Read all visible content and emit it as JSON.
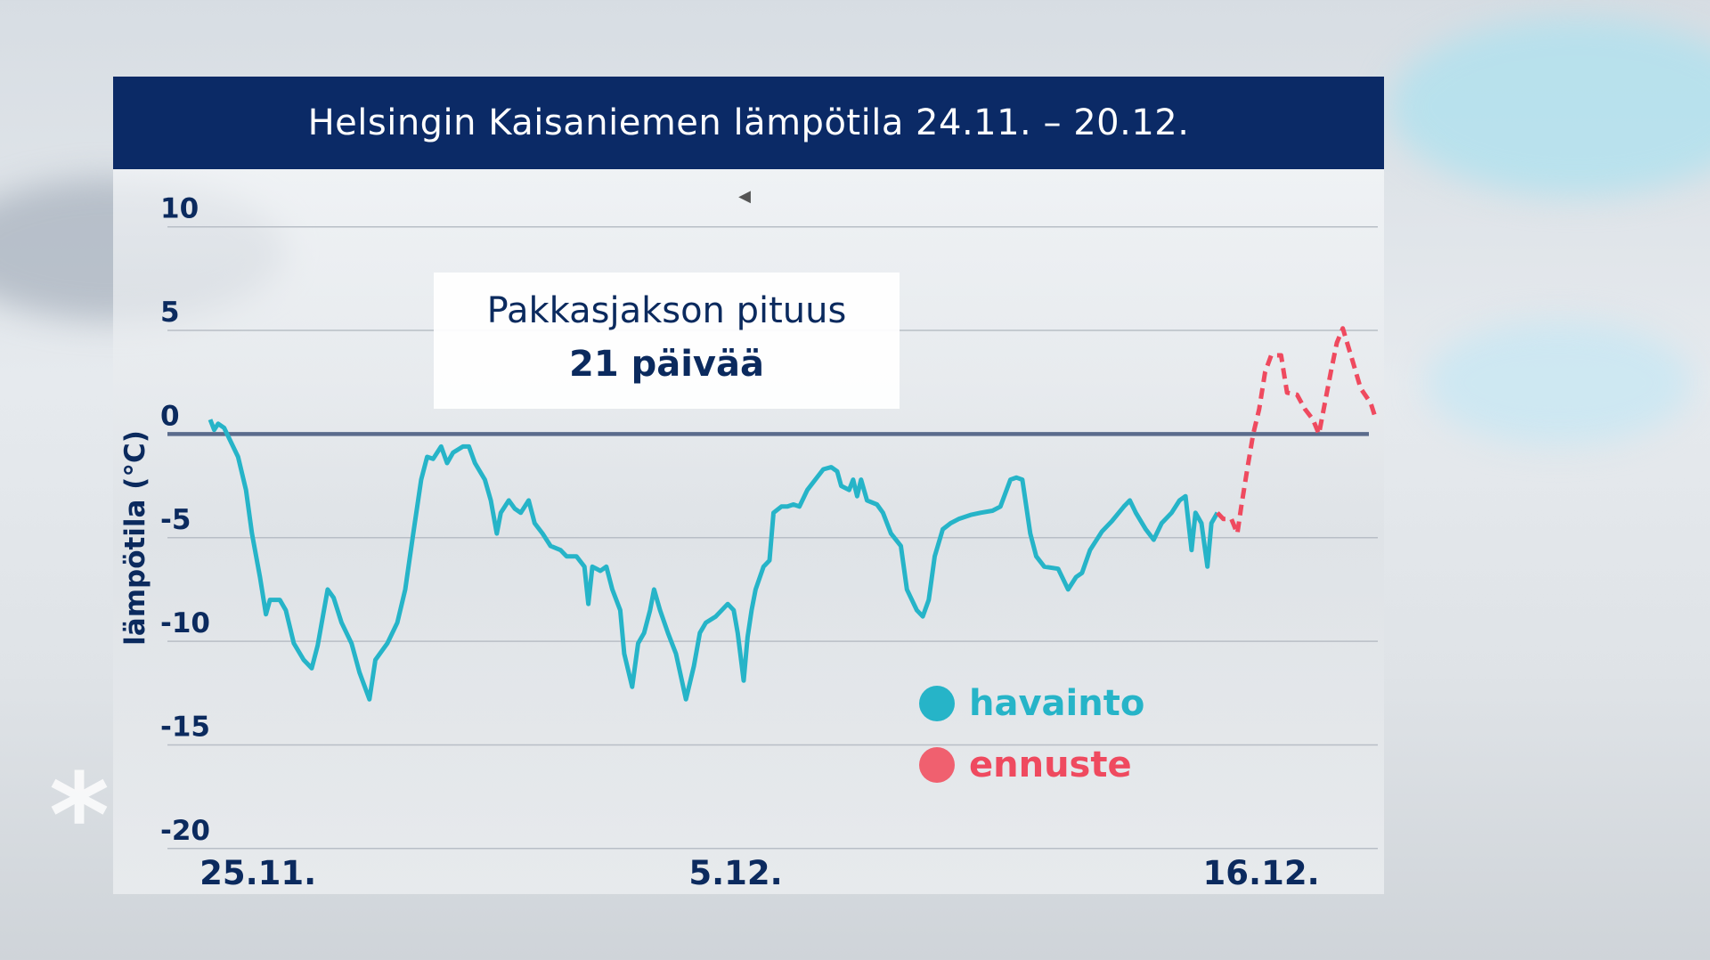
{
  "header": {
    "title": "Helsingin Kaisaniemen lämpötila 24.11. – 20.12."
  },
  "annotation": {
    "line1": "Pakkasjakson pituus",
    "line2": "21 päivää"
  },
  "colors": {
    "header_bg": "#0b2a66",
    "observation": "#26b4c8",
    "forecast": "#ef4a5f",
    "zero_line": "#5a6b8c",
    "text": "#0b2a5e"
  },
  "icons": {
    "pointer": "triangle-left-icon",
    "decor": "snowflake-icon"
  },
  "chart_data": {
    "type": "line",
    "title": "Helsingin Kaisaniemen lämpötila 24.11. – 20.12.",
    "ylabel": "lämpötila (°C)",
    "xlabel": "",
    "ylim": [
      -20,
      10
    ],
    "yticks": [
      10,
      5,
      0,
      -5,
      -10,
      -15,
      -20
    ],
    "xticks": [
      {
        "label": "25.11.",
        "at": "25.11. 00:00"
      },
      {
        "label": "5.12.",
        "at": "5.12. 00:00"
      },
      {
        "label": "16.12.",
        "at": "16.12. 00:00"
      }
    ],
    "xlim": [
      "24.11. 00:00",
      "18.12. 12:00"
    ],
    "grid": true,
    "reference_line": 0,
    "legend": {
      "placement": "bottom-center",
      "entries": [
        "havainto",
        "ennuste"
      ]
    },
    "series": [
      {
        "name": "havainto",
        "style": "solid",
        "points": [
          [
            "24.11. 00:00",
            0.7
          ],
          [
            "24.11. 02:00",
            0.2
          ],
          [
            "24.11. 04:00",
            0.5
          ],
          [
            "24.11. 07:00",
            0.3
          ],
          [
            "24.11. 09:00",
            -0.1
          ],
          [
            "24.11. 14:00",
            -1.1
          ],
          [
            "24.11. 18:00",
            -2.7
          ],
          [
            "24.11. 21:00",
            -4.8
          ],
          [
            "25.11. 01:00",
            -6.9
          ],
          [
            "25.11. 04:00",
            -8.7
          ],
          [
            "25.11. 06:00",
            -8.0
          ],
          [
            "25.11. 11:00",
            -8.0
          ],
          [
            "25.11. 14:00",
            -8.5
          ],
          [
            "25.11. 18:00",
            -10.1
          ],
          [
            "25.11. 23:00",
            -10.9
          ],
          [
            "26.11. 03:00",
            -11.3
          ],
          [
            "26.11. 06:00",
            -10.2
          ],
          [
            "26.11. 11:00",
            -7.5
          ],
          [
            "26.11. 14:00",
            -7.9
          ],
          [
            "26.11. 18:00",
            -9.1
          ],
          [
            "26.11. 23:00",
            -10.1
          ],
          [
            "27.11. 03:00",
            -11.5
          ],
          [
            "27.11. 08:00",
            -12.8
          ],
          [
            "27.11. 11:00",
            -10.9
          ],
          [
            "27.11. 14:00",
            -10.5
          ],
          [
            "27.11. 17:00",
            -10.1
          ],
          [
            "27.11. 22:00",
            -9.1
          ],
          [
            "28.11. 02:00",
            -7.5
          ],
          [
            "28.11. 06:00",
            -4.8
          ],
          [
            "28.11. 10:00",
            -2.2
          ],
          [
            "28.11. 13:00",
            -1.1
          ],
          [
            "28.11. 16:00",
            -1.2
          ],
          [
            "28.11. 20:00",
            -0.6
          ],
          [
            "28.11. 23:00",
            -1.4
          ],
          [
            "29.11. 02:00",
            -0.9
          ],
          [
            "29.11. 07:00",
            -0.6
          ],
          [
            "29.11. 10:00",
            -0.6
          ],
          [
            "29.11. 13:00",
            -1.4
          ],
          [
            "29.11. 18:00",
            -2.2
          ],
          [
            "29.11. 21:00",
            -3.2
          ],
          [
            "30.11. 00:00",
            -4.8
          ],
          [
            "30.11. 02:00",
            -3.8
          ],
          [
            "30.11. 06:00",
            -3.2
          ],
          [
            "30.11. 09:00",
            -3.6
          ],
          [
            "30.11. 12:00",
            -3.8
          ],
          [
            "30.11. 16:00",
            -3.2
          ],
          [
            "30.11. 19:00",
            -4.3
          ],
          [
            "30.11. 23:00",
            -4.8
          ],
          [
            "1.12. 03:00",
            -5.4
          ],
          [
            "1.12. 08:00",
            -5.6
          ],
          [
            "1.12. 11:00",
            -5.9
          ],
          [
            "1.12. 16:00",
            -5.9
          ],
          [
            "1.12. 20:00",
            -6.4
          ],
          [
            "1.12. 22:00",
            -8.2
          ],
          [
            "2.12. 00:00",
            -6.4
          ],
          [
            "2.12. 04:00",
            -6.6
          ],
          [
            "2.12. 07:00",
            -6.4
          ],
          [
            "2.12. 10:00",
            -7.5
          ],
          [
            "2.12. 14:00",
            -8.5
          ],
          [
            "2.12. 16:00",
            -10.6
          ],
          [
            "2.12. 20:00",
            -12.2
          ],
          [
            "2.12. 23:00",
            -10.1
          ],
          [
            "3.12. 02:00",
            -9.6
          ],
          [
            "3.12. 05:00",
            -8.5
          ],
          [
            "3.12. 07:00",
            -7.5
          ],
          [
            "3.12. 10:00",
            -8.5
          ],
          [
            "3.12. 14:00",
            -9.6
          ],
          [
            "3.12. 18:00",
            -10.6
          ],
          [
            "3.12. 23:00",
            -12.8
          ],
          [
            "4.12. 03:00",
            -11.2
          ],
          [
            "4.12. 06:00",
            -9.6
          ],
          [
            "4.12. 09:00",
            -9.1
          ],
          [
            "4.12. 14:00",
            -8.8
          ],
          [
            "4.12. 17:00",
            -8.5
          ],
          [
            "4.12. 20:00",
            -8.2
          ],
          [
            "4.12. 23:00",
            -8.5
          ],
          [
            "5.12. 01:00",
            -9.6
          ],
          [
            "5.12. 04:00",
            -11.9
          ],
          [
            "5.12. 06:00",
            -9.8
          ],
          [
            "5.12. 08:00",
            -8.5
          ],
          [
            "5.12. 10:00",
            -7.5
          ],
          [
            "5.12. 14:00",
            -6.4
          ],
          [
            "5.12. 17:00",
            -6.1
          ],
          [
            "5.12. 19:00",
            -3.8
          ],
          [
            "5.12. 23:00",
            -3.5
          ],
          [
            "6.12. 02:00",
            -3.5
          ],
          [
            "6.12. 05:00",
            -3.4
          ],
          [
            "6.12. 08:00",
            -3.5
          ],
          [
            "6.12. 12:00",
            -2.7
          ],
          [
            "6.12. 16:00",
            -2.2
          ],
          [
            "6.12. 20:00",
            -1.7
          ],
          [
            "7.12. 00:00",
            -1.6
          ],
          [
            "7.12. 03:00",
            -1.8
          ],
          [
            "7.12. 05:00",
            -2.5
          ],
          [
            "7.12. 09:00",
            -2.7
          ],
          [
            "7.12. 11:00",
            -2.2
          ],
          [
            "7.12. 13:00",
            -3.0
          ],
          [
            "7.12. 15:00",
            -2.2
          ],
          [
            "7.12. 18:00",
            -3.2
          ],
          [
            "7.12. 23:00",
            -3.4
          ],
          [
            "8.12. 02:00",
            -3.8
          ],
          [
            "8.12. 06:00",
            -4.8
          ],
          [
            "8.12. 11:00",
            -5.4
          ],
          [
            "8.12. 14:00",
            -7.5
          ],
          [
            "8.12. 19:00",
            -8.5
          ],
          [
            "8.12. 22:00",
            -8.8
          ],
          [
            "9.12. 01:00",
            -8.0
          ],
          [
            "9.12. 04:00",
            -5.9
          ],
          [
            "9.12. 08:00",
            -4.6
          ],
          [
            "9.12. 12:00",
            -4.3
          ],
          [
            "9.12. 16:00",
            -4.1
          ],
          [
            "9.12. 22:00",
            -3.9
          ],
          [
            "10.12. 03:00",
            -3.8
          ],
          [
            "10.12. 09:00",
            -3.7
          ],
          [
            "10.12. 13:00",
            -3.5
          ],
          [
            "10.12. 18:00",
            -2.2
          ],
          [
            "10.12. 21:00",
            -2.1
          ],
          [
            "11.12. 00:00",
            -2.2
          ],
          [
            "11.12. 04:00",
            -4.8
          ],
          [
            "11.12. 07:00",
            -5.9
          ],
          [
            "11.12. 11:00",
            -6.4
          ],
          [
            "11.12. 18:00",
            -6.5
          ],
          [
            "11.12. 23:00",
            -7.5
          ],
          [
            "12.12. 03:00",
            -6.9
          ],
          [
            "12.12. 06:00",
            -6.7
          ],
          [
            "12.12. 10:00",
            -5.6
          ],
          [
            "12.12. 16:00",
            -4.7
          ],
          [
            "12.12. 21:00",
            -4.2
          ],
          [
            "13.12. 03:00",
            -3.5
          ],
          [
            "13.12. 06:00",
            -3.2
          ],
          [
            "13.12. 09:00",
            -3.8
          ],
          [
            "13.12. 14:00",
            -4.6
          ],
          [
            "13.12. 18:00",
            -5.1
          ],
          [
            "13.12. 22:00",
            -4.3
          ],
          [
            "14.12. 03:00",
            -3.8
          ],
          [
            "14.12. 07:00",
            -3.2
          ],
          [
            "14.12. 10:00",
            -3.0
          ],
          [
            "14.12. 13:00",
            -5.6
          ],
          [
            "14.12. 15:00",
            -3.8
          ],
          [
            "14.12. 18:00",
            -4.3
          ],
          [
            "14.12. 21:00",
            -6.4
          ],
          [
            "14.12. 23:00",
            -4.3
          ],
          [
            "15.12. 02:00",
            -3.8
          ]
        ]
      },
      {
        "name": "ennuste",
        "style": "dashed",
        "points": [
          [
            "15.12. 05:00",
            -4.1
          ],
          [
            "15.12. 09:00",
            -4.1
          ],
          [
            "15.12. 12:00",
            -4.8
          ],
          [
            "15.12. 14:00",
            -3.5
          ],
          [
            "15.12. 17:00",
            -1.7
          ],
          [
            "15.12. 20:00",
            0.0
          ],
          [
            "15.12. 23:00",
            1.2
          ],
          [
            "16.12. 02:00",
            3.0
          ],
          [
            "16.12. 05:00",
            3.8
          ],
          [
            "16.12. 10:00",
            3.8
          ],
          [
            "16.12. 13:00",
            2.0
          ],
          [
            "16.12. 18:00",
            1.9
          ],
          [
            "16.12. 22:00",
            1.2
          ],
          [
            "17.12. 02:00",
            0.7
          ],
          [
            "17.12. 05:00",
            0.0
          ],
          [
            "17.12. 08:00",
            1.5
          ],
          [
            "17.12. 11:00",
            3.0
          ],
          [
            "17.12. 14:00",
            4.4
          ],
          [
            "17.12. 17:00",
            5.1
          ],
          [
            "17.12. 22:00",
            3.5
          ],
          [
            "18.12. 02:00",
            2.2
          ],
          [
            "18.12. 07:00",
            1.5
          ],
          [
            "18.12. 09:00",
            0.9
          ]
        ]
      }
    ]
  }
}
